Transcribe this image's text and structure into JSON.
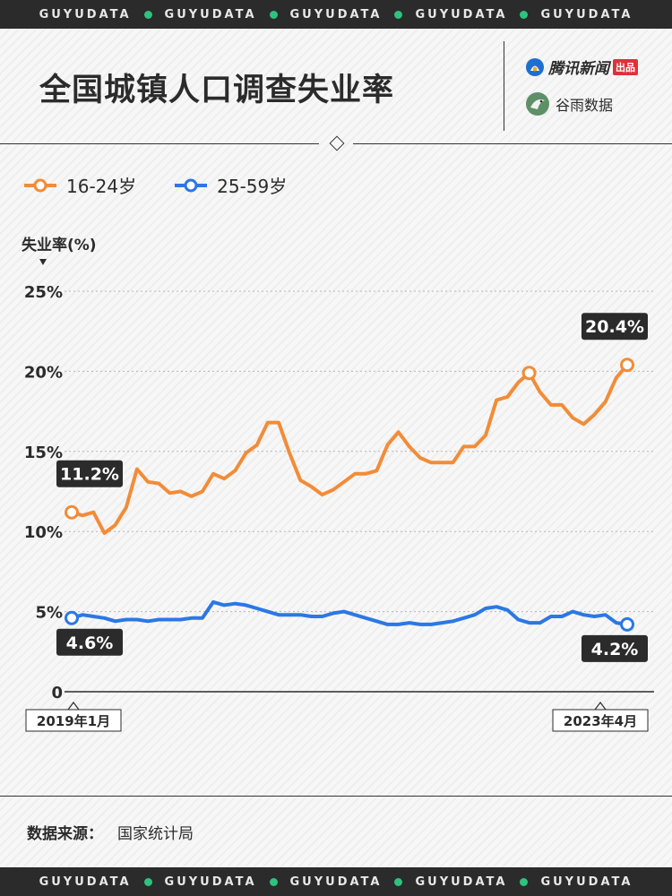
{
  "brand_strip": [
    "GUYUDATA",
    "GUYUDATA",
    "GUYUDATA",
    "GUYUDATA",
    "GUYUDATA"
  ],
  "title": "全国城镇人口调查失业率",
  "brands": {
    "tencent_name": "腾讯新闻",
    "tencent_tag": "出品",
    "guyu_name": "谷雨数据"
  },
  "legend": [
    {
      "label": "16-24岁",
      "color": "#f28c38"
    },
    {
      "label": "25-59岁",
      "color": "#2b78e4"
    }
  ],
  "source": {
    "label": "数据来源：",
    "value": "国家统计局"
  },
  "chart_data": {
    "type": "line",
    "ylabel": "失业率(%)",
    "ylim": [
      0,
      25
    ],
    "yticks": [
      {
        "value": 0,
        "label": "0"
      },
      {
        "value": 5,
        "label": "5%"
      },
      {
        "value": 10,
        "label": "10%"
      },
      {
        "value": 15,
        "label": "15%"
      },
      {
        "value": 20,
        "label": "20%"
      },
      {
        "value": 25,
        "label": "25%"
      }
    ],
    "x_start_label": "2019年1月",
    "x_end_label": "2023年4月",
    "grid": true,
    "series": [
      {
        "name": "16-24岁",
        "color": "#f28c38",
        "values": [
          11.2,
          11.0,
          11.2,
          9.9,
          10.4,
          11.5,
          13.9,
          13.1,
          13.0,
          12.4,
          12.5,
          12.2,
          12.5,
          13.6,
          13.3,
          13.8,
          14.9,
          15.4,
          16.8,
          16.8,
          14.9,
          13.2,
          12.8,
          12.3,
          12.6,
          13.1,
          13.6,
          13.6,
          13.8,
          15.4,
          16.2,
          15.3,
          14.6,
          14.3,
          14.3,
          14.3,
          15.3,
          15.3,
          16.0,
          18.2,
          18.4,
          19.3,
          19.9,
          18.7,
          17.9,
          17.9,
          17.1,
          16.7,
          17.3,
          18.1,
          19.6,
          20.4
        ],
        "labels": [
          {
            "index": 0,
            "text": "11.2%",
            "pos": "above"
          },
          {
            "index": 51,
            "text": "20.4%",
            "pos": "above"
          }
        ],
        "highlight_points": [
          0,
          42,
          51
        ]
      },
      {
        "name": "25-59岁",
        "color": "#2b78e4",
        "values": [
          4.6,
          4.8,
          4.7,
          4.6,
          4.4,
          4.5,
          4.5,
          4.4,
          4.5,
          4.5,
          4.5,
          4.6,
          4.6,
          5.6,
          5.4,
          5.5,
          5.4,
          5.2,
          5.0,
          4.8,
          4.8,
          4.8,
          4.7,
          4.7,
          4.9,
          5.0,
          4.8,
          4.6,
          4.4,
          4.2,
          4.2,
          4.3,
          4.2,
          4.2,
          4.3,
          4.4,
          4.6,
          4.8,
          5.2,
          5.3,
          5.1,
          4.5,
          4.3,
          4.3,
          4.7,
          4.7,
          5.0,
          4.8,
          4.7,
          4.8,
          4.3,
          4.2
        ],
        "labels": [
          {
            "index": 0,
            "text": "4.6%",
            "pos": "below"
          },
          {
            "index": 51,
            "text": "4.2%",
            "pos": "below"
          }
        ],
        "highlight_points": [
          0,
          51
        ]
      }
    ]
  }
}
